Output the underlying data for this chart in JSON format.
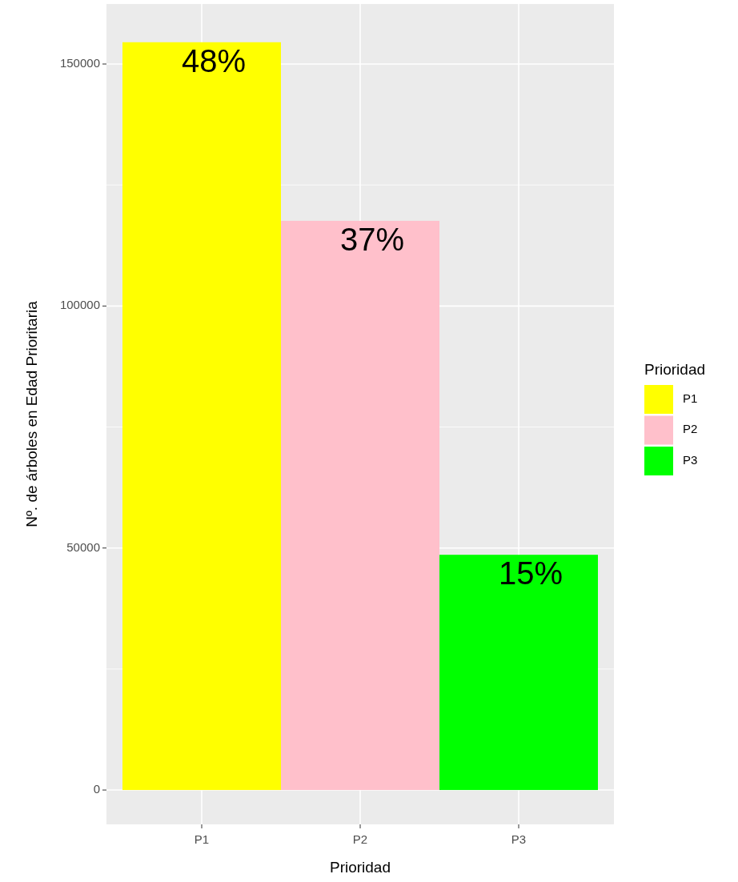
{
  "chart_data": {
    "type": "bar",
    "xlabel": "Prioridad",
    "ylabel": "Nº. de árboles en Edad Prioritaria",
    "legend_title": "Prioridad",
    "categories": [
      "P1",
      "P2",
      "P3"
    ],
    "series": [
      {
        "name": "P1",
        "color": "#ffff00",
        "values": [
          154500,
          null,
          null
        ]
      },
      {
        "name": "P2",
        "color": "#ffc0cb",
        "values": [
          null,
          117600,
          null
        ]
      },
      {
        "name": "P3",
        "color": "#00ff00",
        "values": [
          null,
          null,
          48600
        ]
      }
    ],
    "annotations": [
      {
        "text": "48%",
        "x": "P1",
        "y": 154500
      },
      {
        "text": "37%",
        "x": "P2",
        "y": 117600
      },
      {
        "text": "15%",
        "x": "P3",
        "y": 48600
      }
    ],
    "ylim": [
      -7100,
      162400
    ],
    "yticks": [
      0,
      50000,
      100000,
      150000
    ],
    "grid": true,
    "legend": "right"
  }
}
